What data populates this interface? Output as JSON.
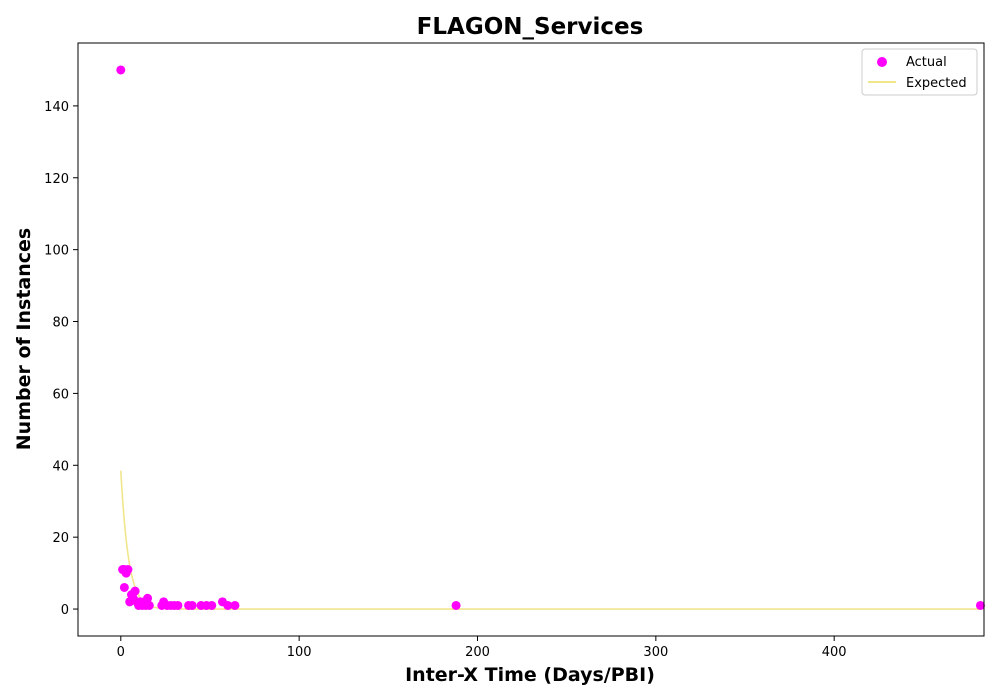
{
  "chart_data": {
    "type": "scatter",
    "title": "FLAGON_Services",
    "xlabel": "Inter-X Time (Days/PBI)",
    "ylabel": "Number of Instances",
    "xlim": [
      -24,
      484
    ],
    "ylim": [
      -7.5,
      157.5
    ],
    "x_ticks": [
      0,
      100,
      200,
      300,
      400,
      500
    ],
    "y_ticks": [
      0,
      20,
      40,
      60,
      80,
      100,
      120,
      140
    ],
    "grid": false,
    "legend_position": "top-right",
    "series": [
      {
        "name": "Actual",
        "kind": "scatter",
        "color": "#ff00ff",
        "points": [
          [
            0,
            150
          ],
          [
            1,
            11
          ],
          [
            2,
            11
          ],
          [
            3,
            10
          ],
          [
            4,
            11
          ],
          [
            2,
            6
          ],
          [
            5,
            2
          ],
          [
            6,
            4
          ],
          [
            7,
            3
          ],
          [
            8,
            5
          ],
          [
            9,
            2
          ],
          [
            10,
            1
          ],
          [
            11,
            2
          ],
          [
            12,
            1
          ],
          [
            13,
            2
          ],
          [
            14,
            1
          ],
          [
            15,
            3
          ],
          [
            16,
            1
          ],
          [
            23,
            1
          ],
          [
            24,
            2
          ],
          [
            26,
            1
          ],
          [
            28,
            1
          ],
          [
            30,
            1
          ],
          [
            32,
            1
          ],
          [
            38,
            1
          ],
          [
            40,
            1
          ],
          [
            45,
            1
          ],
          [
            48,
            1
          ],
          [
            51,
            1
          ],
          [
            57,
            2
          ],
          [
            60,
            1
          ],
          [
            64,
            1
          ],
          [
            188,
            1
          ],
          [
            482,
            1
          ]
        ]
      },
      {
        "name": "Expected",
        "kind": "line",
        "color": "#f0e68c",
        "model": {
          "type": "exponential",
          "a": 38.5,
          "b": 0.23,
          "x_start": 0,
          "x_end": 482
        }
      }
    ]
  }
}
